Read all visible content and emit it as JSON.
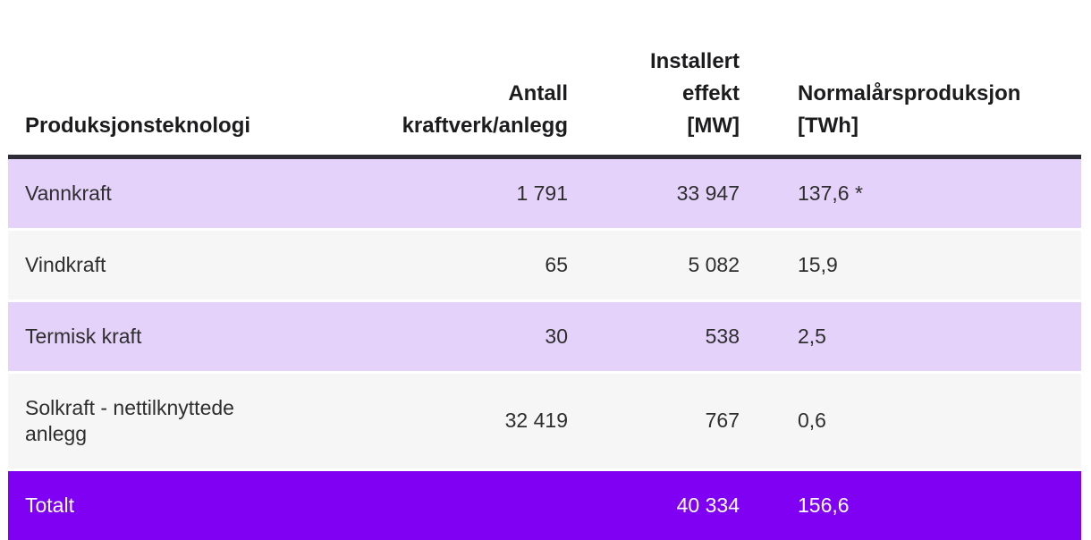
{
  "chart_data": {
    "type": "table",
    "title": "",
    "columns": [
      "Produksjonsteknologi",
      "Antall kraftverk/anlegg",
      "Installert effekt [MW]",
      "Normalårsproduksjon [TWh]"
    ],
    "rows": [
      [
        "Vannkraft",
        "1 791",
        "33 947",
        "137,6 *"
      ],
      [
        "Vindkraft",
        "65",
        "5 082",
        "15,9"
      ],
      [
        "Termisk kraft",
        "30",
        "538",
        "2,5"
      ],
      [
        "Solkraft - nettilknyttede anlegg",
        "32 419",
        "767",
        "0,6"
      ],
      [
        "Totalt",
        "",
        "40 334",
        "156,6"
      ]
    ]
  },
  "header": {
    "col1": "Produksjonsteknologi",
    "col2": "Antall\nkraftverk/anlegg",
    "col3": "Installert\neffekt\n[MW]",
    "col4": "Normalårsproduksjon\n[TWh]"
  },
  "colors": {
    "row_purple": "#e5d2fb",
    "row_gray": "#f6f6f6",
    "total_purple": "#7f00f2",
    "header_rule": "#2d2b33",
    "body_text": "#2e2e2e",
    "header_text": "#1c1c1e",
    "total_text": "#ffffff",
    "page_bg": "#ffffff"
  }
}
